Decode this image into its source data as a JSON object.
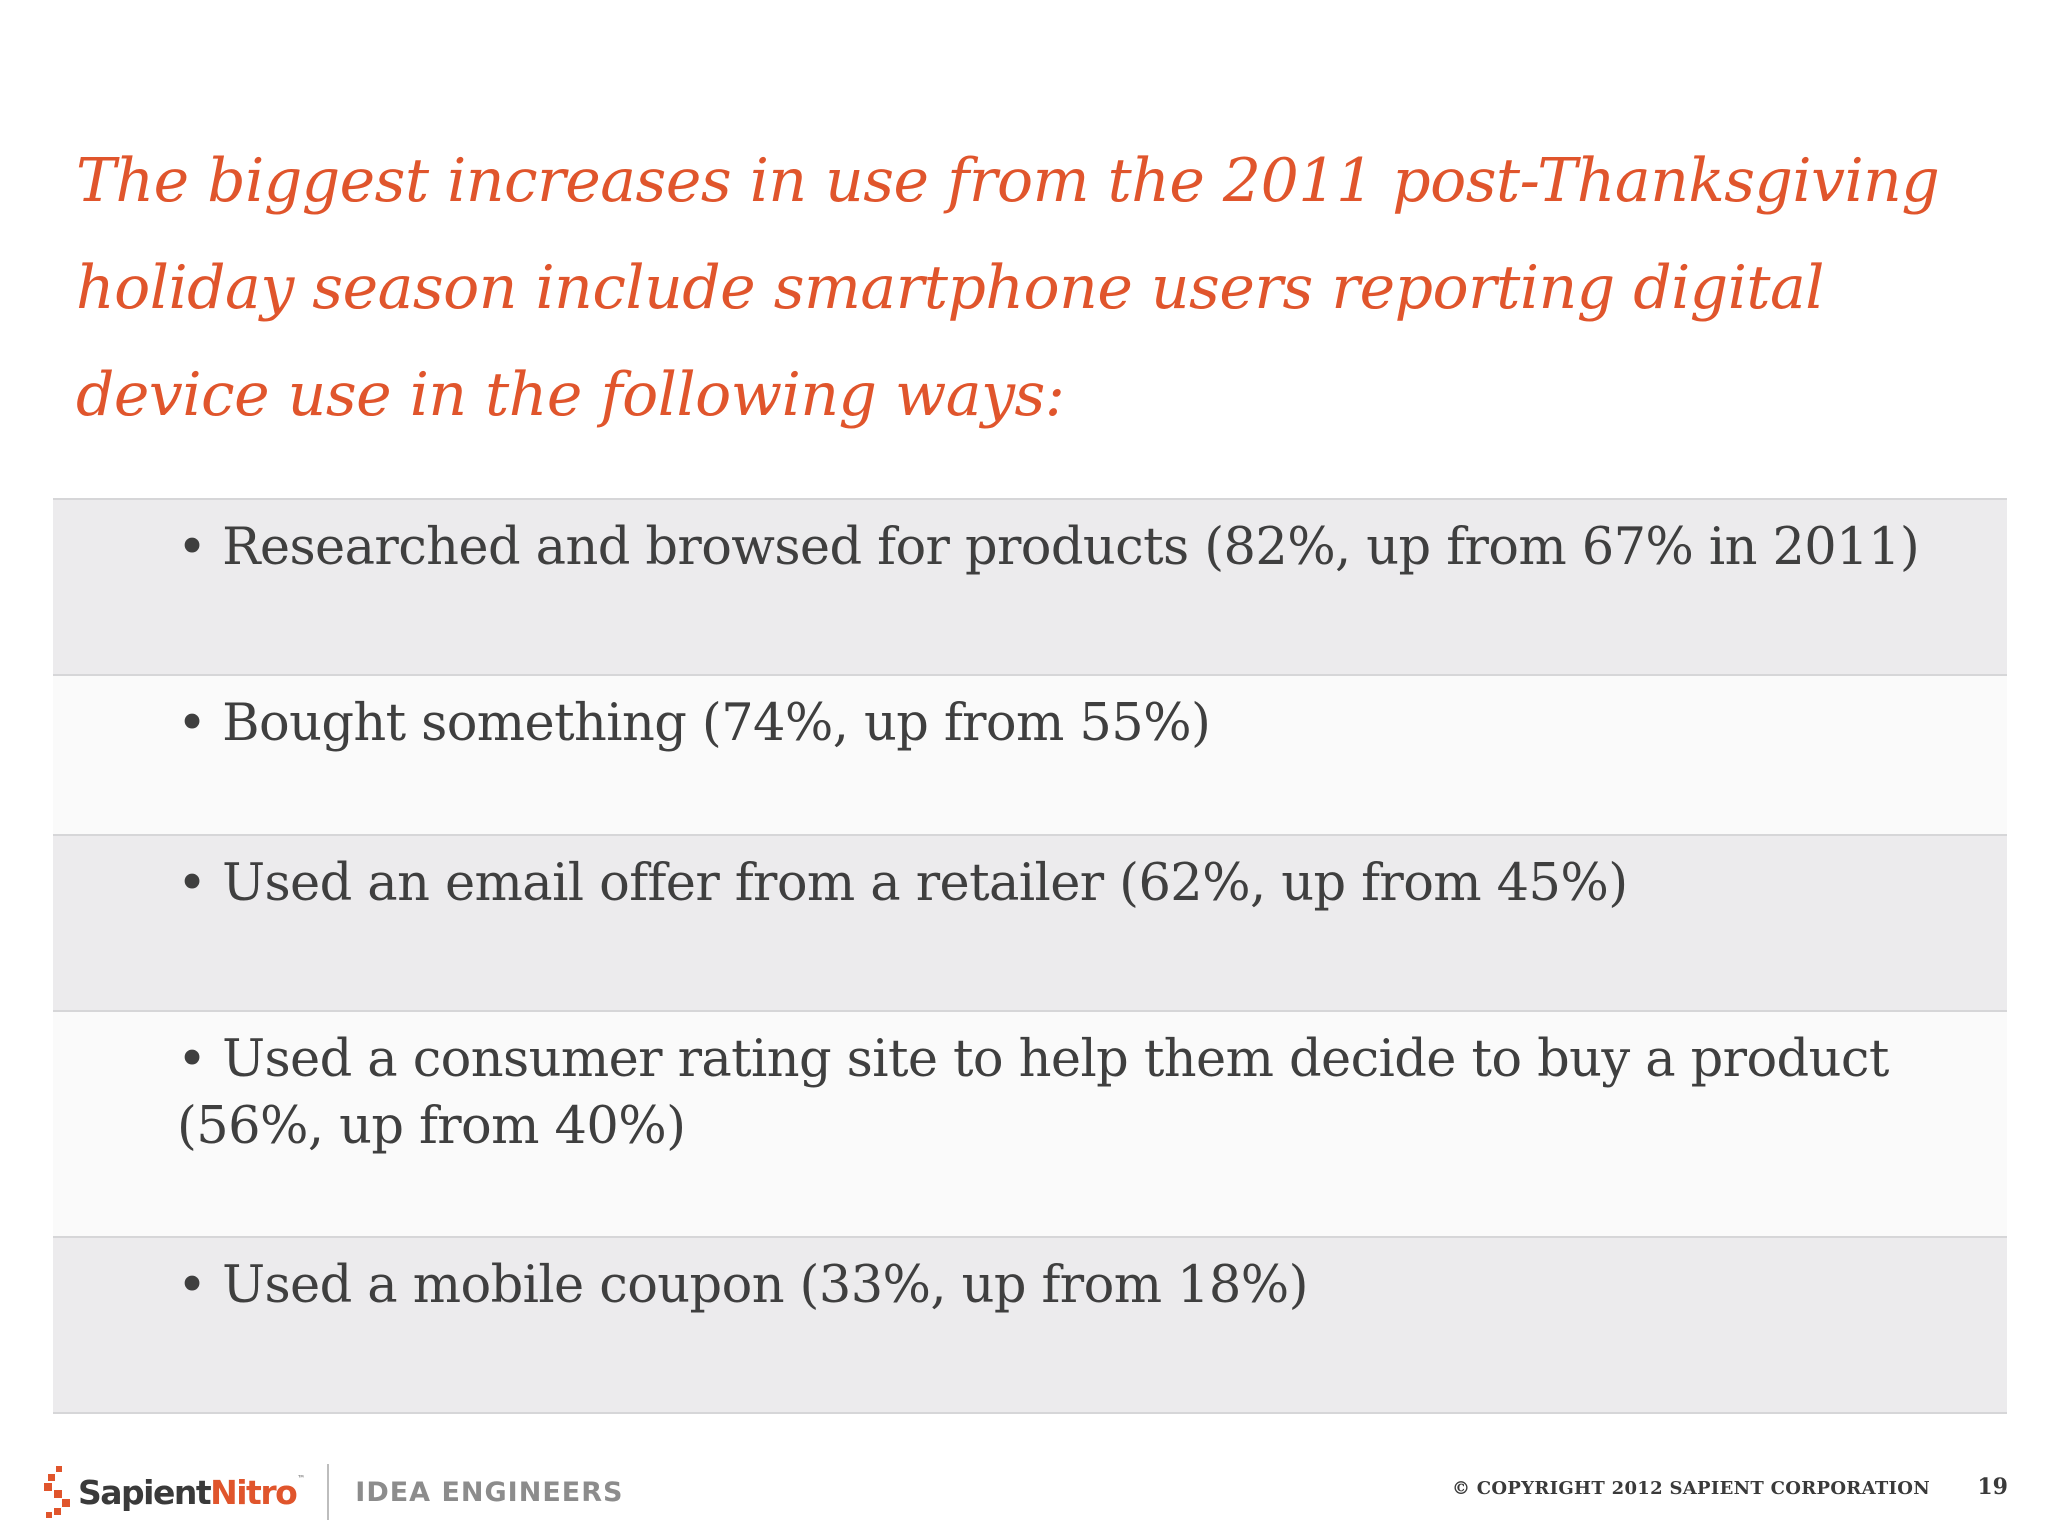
{
  "slide": {
    "title": "The biggest increases in use from the 2011 post-Thanksgiving holiday season include smartphone users reporting digital device use in the following ways:",
    "bullets": [
      "• Researched and browsed for products (82%, up from 67% in 2011)",
      "• Bought something (74%, up from 55%)",
      "• Used an email offer from a retailer (62%, up from 45%)",
      "• Used a consumer rating site to help them decide to buy a product (56%, up from 40%)",
      "• Used a mobile coupon (33%, up from 18%)"
    ]
  },
  "footer": {
    "brand_sapient": "Sapient",
    "brand_nitro": "Nitro",
    "brand_tm": "™",
    "tagline": "IDEA ENGINEERS",
    "copyright": "© COPYRIGHT 2012 SAPIENT CORPORATION",
    "page_number": "19"
  },
  "colors": {
    "title": "#e0552c",
    "body_text": "#3f3f3f",
    "row_shade": "#ecebed",
    "brand_accent": "#e0552c"
  },
  "icons": {
    "logo_mark": "sapient-logo-icon"
  }
}
